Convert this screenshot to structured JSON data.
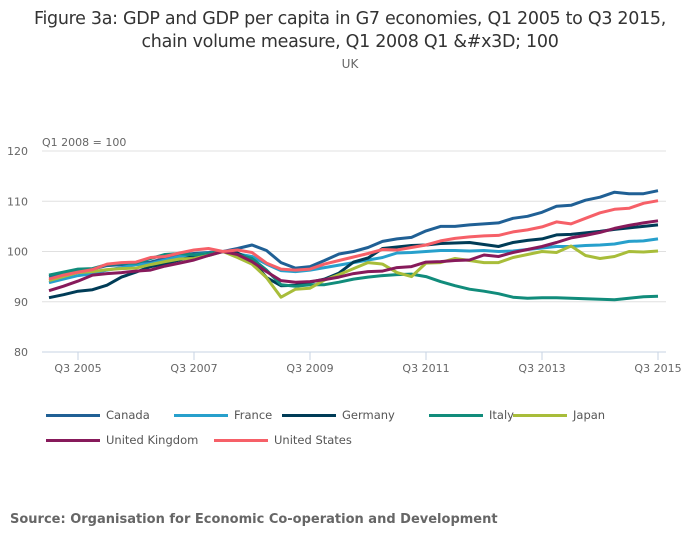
{
  "chart_data": {
    "type": "line",
    "title": "Figure 3a: GDP and GDP per capita in G7 economies, Q1 2005 to Q3 2015, chain volume measure, Q1 2008 Q1 &#x3D; 100",
    "title_lines": [
      "Figure 3a: GDP and GDP per capita in G7 economies, Q1 2005 to Q3 2015,",
      "chain volume measure, Q1 2008 Q1 &#x3D; 100"
    ],
    "subtitle": "UK",
    "ylabel": "Q1 2008 = 100",
    "xlabel": "",
    "ylim": [
      80,
      120
    ],
    "yticks": [
      80,
      90,
      100,
      110,
      120
    ],
    "xtick_labels": [
      "Q3 2005",
      "Q3 2007",
      "Q3 2009",
      "Q3 2011",
      "Q3 2013",
      "Q3 2015"
    ],
    "xtick_indices": [
      2,
      10,
      18,
      26,
      34,
      42
    ],
    "grid": true,
    "legend_position": "bottom",
    "x": [
      "Q1 2005",
      "Q2 2005",
      "Q3 2005",
      "Q4 2005",
      "Q1 2006",
      "Q2 2006",
      "Q3 2006",
      "Q4 2006",
      "Q1 2007",
      "Q2 2007",
      "Q3 2007",
      "Q4 2007",
      "Q1 2008",
      "Q2 2008",
      "Q3 2008",
      "Q4 2008",
      "Q1 2009",
      "Q2 2009",
      "Q3 2009",
      "Q4 2009",
      "Q1 2010",
      "Q2 2010",
      "Q3 2010",
      "Q4 2010",
      "Q1 2011",
      "Q2 2011",
      "Q3 2011",
      "Q4 2011",
      "Q1 2012",
      "Q2 2012",
      "Q3 2012",
      "Q4 2012",
      "Q1 2013",
      "Q2 2013",
      "Q3 2013",
      "Q4 2013",
      "Q1 2014",
      "Q2 2014",
      "Q3 2014",
      "Q4 2014",
      "Q1 2015",
      "Q2 2015",
      "Q3 2015"
    ],
    "series": [
      {
        "name": "Canada",
        "color": "#206095",
        "values": [
          95.0,
          95.6,
          96.0,
          96.5,
          97.2,
          97.4,
          97.6,
          97.9,
          98.6,
          99.3,
          99.6,
          99.8,
          100.0,
          100.6,
          101.3,
          100.2,
          97.8,
          96.7,
          97.0,
          98.2,
          99.5,
          100.0,
          100.8,
          102.0,
          102.5,
          102.8,
          104.1,
          105.0,
          105.0,
          105.3,
          105.5,
          105.7,
          106.6,
          107.0,
          107.8,
          109.0,
          109.2,
          110.2,
          110.8,
          111.8,
          111.5,
          111.5,
          112.1
        ]
      },
      {
        "name": "France",
        "color": "#27A0CC",
        "values": [
          93.8,
          94.5,
          95.2,
          95.6,
          96.3,
          96.8,
          97.4,
          97.6,
          98.3,
          99.0,
          99.3,
          99.7,
          100.0,
          99.5,
          99.0,
          97.5,
          96.2,
          96.0,
          96.3,
          96.8,
          97.3,
          97.8,
          98.3,
          98.8,
          99.7,
          99.8,
          100.0,
          100.2,
          100.2,
          100.1,
          100.2,
          100.0,
          100.1,
          100.4,
          100.7,
          101.0,
          101.0,
          101.2,
          101.3,
          101.5,
          102.0,
          102.1,
          102.5
        ]
      },
      {
        "name": "Germany",
        "color": "#003C57",
        "values": [
          90.8,
          91.4,
          92.1,
          92.4,
          93.3,
          94.9,
          95.9,
          97.0,
          97.6,
          98.3,
          99.0,
          99.6,
          100.0,
          99.7,
          98.3,
          94.8,
          93.2,
          93.3,
          93.9,
          94.5,
          95.7,
          97.9,
          98.7,
          100.6,
          100.9,
          101.2,
          101.3,
          101.6,
          101.7,
          101.8,
          101.4,
          101.0,
          101.8,
          102.2,
          102.5,
          103.3,
          103.4,
          103.7,
          104.0,
          104.4,
          104.7,
          105.0,
          105.3
        ]
      },
      {
        "name": "Italy",
        "color": "#118C7B",
        "values": [
          95.3,
          95.9,
          96.5,
          96.6,
          97.4,
          97.7,
          97.7,
          98.6,
          99.4,
          99.6,
          99.3,
          99.6,
          100.0,
          99.4,
          98.6,
          96.3,
          93.4,
          93.1,
          93.4,
          93.4,
          93.9,
          94.5,
          94.9,
          95.2,
          95.4,
          95.5,
          95.0,
          94.0,
          93.2,
          92.5,
          92.1,
          91.6,
          90.9,
          90.7,
          90.8,
          90.8,
          90.7,
          90.6,
          90.5,
          90.4,
          90.7,
          91.0,
          91.1
        ]
      },
      {
        "name": "Japan",
        "color": "#A8BD3A",
        "values": [
          94.2,
          95.0,
          95.8,
          96.0,
          96.4,
          96.6,
          96.7,
          97.4,
          98.0,
          98.5,
          98.6,
          99.2,
          100.0,
          98.8,
          97.5,
          94.8,
          90.9,
          92.5,
          92.7,
          94.3,
          95.4,
          96.6,
          97.8,
          97.5,
          95.8,
          95.0,
          97.7,
          97.8,
          98.6,
          98.2,
          97.8,
          97.8,
          98.8,
          99.4,
          100.0,
          99.8,
          101.1,
          99.2,
          98.6,
          99.0,
          100.0,
          99.9,
          100.1
        ]
      },
      {
        "name": "United Kingdom",
        "color": "#871A5B",
        "values": [
          92.2,
          93.1,
          94.1,
          95.3,
          95.6,
          95.8,
          96.1,
          96.3,
          97.1,
          97.7,
          98.3,
          99.2,
          100.0,
          99.4,
          98.0,
          96.0,
          94.2,
          93.9,
          94.0,
          94.4,
          94.9,
          95.6,
          96.0,
          96.1,
          96.8,
          97.0,
          97.9,
          98.0,
          98.2,
          98.3,
          99.3,
          99.0,
          99.8,
          100.4,
          101.0,
          101.8,
          102.7,
          103.2,
          103.8,
          104.6,
          105.2,
          105.7,
          106.1
        ]
      },
      {
        "name": "United States",
        "color": "#F66068",
        "values": [
          94.5,
          95.3,
          95.9,
          96.4,
          97.5,
          97.8,
          97.9,
          98.8,
          99.0,
          99.7,
          100.3,
          100.6,
          100.0,
          100.3,
          99.8,
          97.7,
          96.5,
          96.3,
          96.5,
          97.5,
          98.2,
          98.9,
          99.6,
          100.4,
          100.3,
          100.8,
          101.3,
          102.1,
          102.6,
          102.9,
          103.1,
          103.2,
          103.9,
          104.3,
          104.9,
          105.9,
          105.5,
          106.6,
          107.7,
          108.4,
          108.6,
          109.6,
          110.1
        ]
      }
    ]
  },
  "source": "Source: Organisation for Economic Co-operation and Development"
}
